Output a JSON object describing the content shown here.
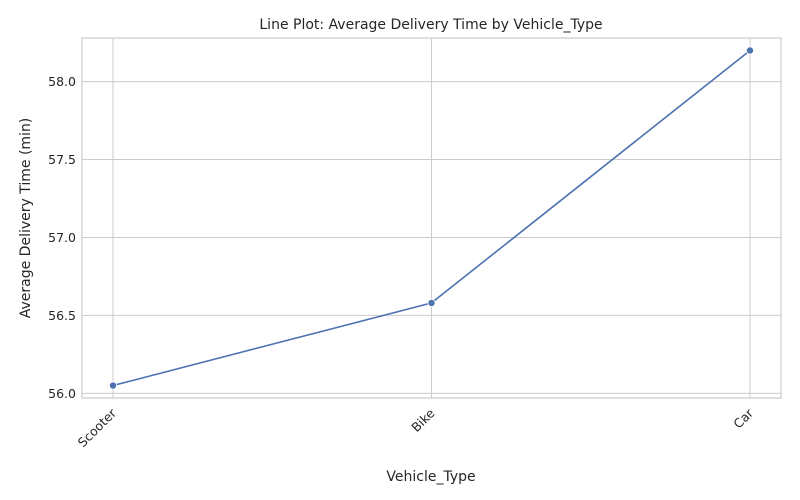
{
  "chart_data": {
    "type": "line",
    "title": "Line Plot: Average Delivery Time by Vehicle_Type",
    "xlabel": "Vehicle_Type",
    "ylabel": "Average Delivery Time (min)",
    "categories": [
      "Scooter",
      "Bike",
      "Car"
    ],
    "series": [
      {
        "values": [
          56.05,
          56.58,
          58.2
        ]
      }
    ],
    "ylim": [
      55.97,
      58.28
    ],
    "yticks": [
      "56.0",
      "56.5",
      "57.0",
      "57.5",
      "58.0"
    ],
    "grid": true,
    "legend": "none",
    "colors": {
      "series": "#4c72b0",
      "grid": "#cccccc",
      "background": "#ffffff"
    }
  }
}
